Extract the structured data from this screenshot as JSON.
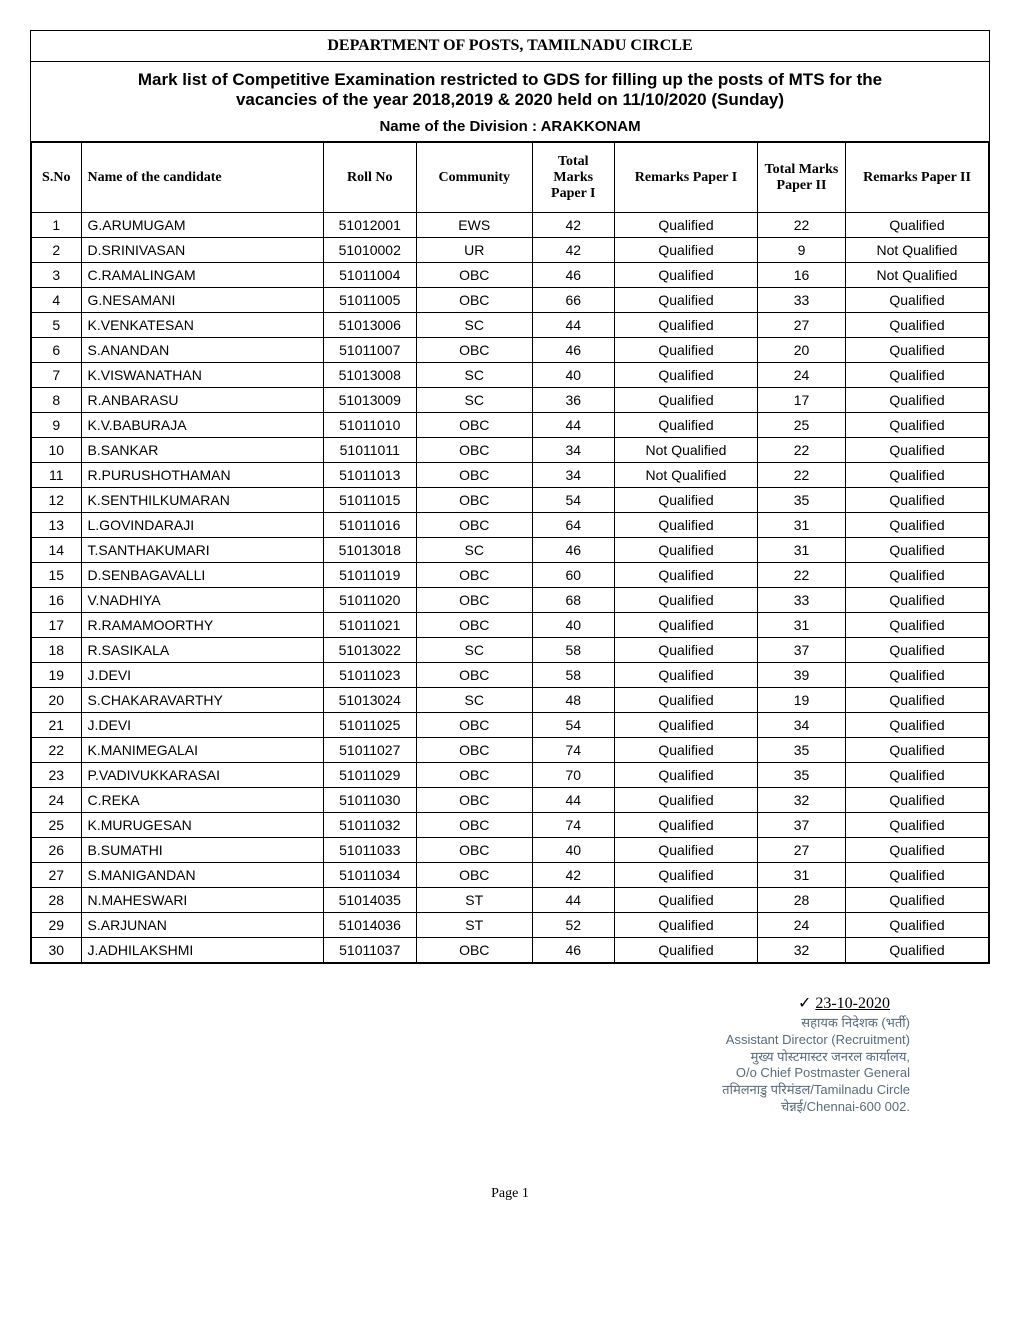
{
  "header": {
    "department": "DEPARTMENT OF POSTS, TAMILNADU CIRCLE",
    "title_line1": "Mark list of Competitive Examination restricted to GDS for filling up the posts of MTS for the",
    "title_line2": "vacancies of the year 2018,2019 & 2020 held on 11/10/2020 (Sunday)",
    "division": "Name of the Division : ARAKKONAM"
  },
  "columns": [
    "S.No",
    "Name of the candidate",
    "Roll No",
    "Community",
    "Total Marks Paper I",
    "Remarks Paper I",
    "Total Marks Paper II",
    "Remarks Paper II"
  ],
  "rows": [
    {
      "sno": "1",
      "name": "G.ARUMUGAM",
      "roll": "51012001",
      "community": "EWS",
      "p1": "42",
      "r1": "Qualified",
      "p2": "22",
      "r2": "Qualified"
    },
    {
      "sno": "2",
      "name": "D.SRINIVASAN",
      "roll": "51010002",
      "community": "UR",
      "p1": "42",
      "r1": "Qualified",
      "p2": "9",
      "r2": "Not Qualified"
    },
    {
      "sno": "3",
      "name": "C.RAMALINGAM",
      "roll": "51011004",
      "community": "OBC",
      "p1": "46",
      "r1": "Qualified",
      "p2": "16",
      "r2": "Not Qualified"
    },
    {
      "sno": "4",
      "name": "G.NESAMANI",
      "roll": "51011005",
      "community": "OBC",
      "p1": "66",
      "r1": "Qualified",
      "p2": "33",
      "r2": "Qualified"
    },
    {
      "sno": "5",
      "name": "K.VENKATESAN",
      "roll": "51013006",
      "community": "SC",
      "p1": "44",
      "r1": "Qualified",
      "p2": "27",
      "r2": "Qualified"
    },
    {
      "sno": "6",
      "name": "S.ANANDAN",
      "roll": "51011007",
      "community": "OBC",
      "p1": "46",
      "r1": "Qualified",
      "p2": "20",
      "r2": "Qualified"
    },
    {
      "sno": "7",
      "name": "K.VISWANATHAN",
      "roll": "51013008",
      "community": "SC",
      "p1": "40",
      "r1": "Qualified",
      "p2": "24",
      "r2": "Qualified"
    },
    {
      "sno": "8",
      "name": "R.ANBARASU",
      "roll": "51013009",
      "community": "SC",
      "p1": "36",
      "r1": "Qualified",
      "p2": "17",
      "r2": "Qualified"
    },
    {
      "sno": "9",
      "name": "K.V.BABURAJA",
      "roll": "51011010",
      "community": "OBC",
      "p1": "44",
      "r1": "Qualified",
      "p2": "25",
      "r2": "Qualified"
    },
    {
      "sno": "10",
      "name": "B.SANKAR",
      "roll": "51011011",
      "community": "OBC",
      "p1": "34",
      "r1": "Not Qualified",
      "p2": "22",
      "r2": "Qualified"
    },
    {
      "sno": "11",
      "name": "R.PURUSHOTHAMAN",
      "roll": "51011013",
      "community": "OBC",
      "p1": "34",
      "r1": "Not Qualified",
      "p2": "22",
      "r2": "Qualified"
    },
    {
      "sno": "12",
      "name": "K.SENTHILKUMARAN",
      "roll": "51011015",
      "community": "OBC",
      "p1": "54",
      "r1": "Qualified",
      "p2": "35",
      "r2": "Qualified"
    },
    {
      "sno": "13",
      "name": "L.GOVINDARAJI",
      "roll": "51011016",
      "community": "OBC",
      "p1": "64",
      "r1": "Qualified",
      "p2": "31",
      "r2": "Qualified"
    },
    {
      "sno": "14",
      "name": "T.SANTHAKUMARI",
      "roll": "51013018",
      "community": "SC",
      "p1": "46",
      "r1": "Qualified",
      "p2": "31",
      "r2": "Qualified"
    },
    {
      "sno": "15",
      "name": "D.SENBAGAVALLI",
      "roll": "51011019",
      "community": "OBC",
      "p1": "60",
      "r1": "Qualified",
      "p2": "22",
      "r2": "Qualified"
    },
    {
      "sno": "16",
      "name": "V.NADHIYA",
      "roll": "51011020",
      "community": "OBC",
      "p1": "68",
      "r1": "Qualified",
      "p2": "33",
      "r2": "Qualified"
    },
    {
      "sno": "17",
      "name": "R.RAMAMOORTHY",
      "roll": "51011021",
      "community": "OBC",
      "p1": "40",
      "r1": "Qualified",
      "p2": "31",
      "r2": "Qualified"
    },
    {
      "sno": "18",
      "name": "R.SASIKALA",
      "roll": "51013022",
      "community": "SC",
      "p1": "58",
      "r1": "Qualified",
      "p2": "37",
      "r2": "Qualified"
    },
    {
      "sno": "19",
      "name": "J.DEVI",
      "roll": "51011023",
      "community": "OBC",
      "p1": "58",
      "r1": "Qualified",
      "p2": "39",
      "r2": "Qualified"
    },
    {
      "sno": "20",
      "name": "S.CHAKARAVARTHY",
      "roll": "51013024",
      "community": "SC",
      "p1": "48",
      "r1": "Qualified",
      "p2": "19",
      "r2": "Qualified"
    },
    {
      "sno": "21",
      "name": "J.DEVI",
      "roll": "51011025",
      "community": "OBC",
      "p1": "54",
      "r1": "Qualified",
      "p2": "34",
      "r2": "Qualified"
    },
    {
      "sno": "22",
      "name": "K.MANIMEGALAI",
      "roll": "51011027",
      "community": "OBC",
      "p1": "74",
      "r1": "Qualified",
      "p2": "35",
      "r2": "Qualified"
    },
    {
      "sno": "23",
      "name": "P.VADIVUKKARASAI",
      "roll": "51011029",
      "community": "OBC",
      "p1": "70",
      "r1": "Qualified",
      "p2": "35",
      "r2": "Qualified"
    },
    {
      "sno": "24",
      "name": "C.REKA",
      "roll": "51011030",
      "community": "OBC",
      "p1": "44",
      "r1": "Qualified",
      "p2": "32",
      "r2": "Qualified"
    },
    {
      "sno": "25",
      "name": "K.MURUGESAN",
      "roll": "51011032",
      "community": "OBC",
      "p1": "74",
      "r1": "Qualified",
      "p2": "37",
      "r2": "Qualified"
    },
    {
      "sno": "26",
      "name": "B.SUMATHI",
      "roll": "51011033",
      "community": "OBC",
      "p1": "40",
      "r1": "Qualified",
      "p2": "27",
      "r2": "Qualified"
    },
    {
      "sno": "27",
      "name": "S.MANIGANDAN",
      "roll": "51011034",
      "community": "OBC",
      "p1": "42",
      "r1": "Qualified",
      "p2": "31",
      "r2": "Qualified"
    },
    {
      "sno": "28",
      "name": "N.MAHESWARI",
      "roll": "51014035",
      "community": "ST",
      "p1": "44",
      "r1": "Qualified",
      "p2": "28",
      "r2": "Qualified"
    },
    {
      "sno": "29",
      "name": "S.ARJUNAN",
      "roll": "51014036",
      "community": "ST",
      "p1": "52",
      "r1": "Qualified",
      "p2": "24",
      "r2": "Qualified"
    },
    {
      "sno": "30",
      "name": "J.ADHILAKSHMI",
      "roll": "51011037",
      "community": "OBC",
      "p1": "46",
      "r1": "Qualified",
      "p2": "32",
      "r2": "Qualified"
    }
  ],
  "signature": {
    "date": "23-10-2020",
    "line1": "सहायक निदेशक (भर्ती)",
    "line2": "Assistant Director (Recruitment)",
    "line3": "मुख्य पोस्टमास्टर जनरल कार्यालय,",
    "line4": "O/o Chief Postmaster General",
    "line5": "तमिलनाडु परिमंडल/Tamilnadu Circle",
    "line6": "चेन्नई/Chennai-600 002."
  },
  "footer": {
    "page": "Page 1"
  }
}
